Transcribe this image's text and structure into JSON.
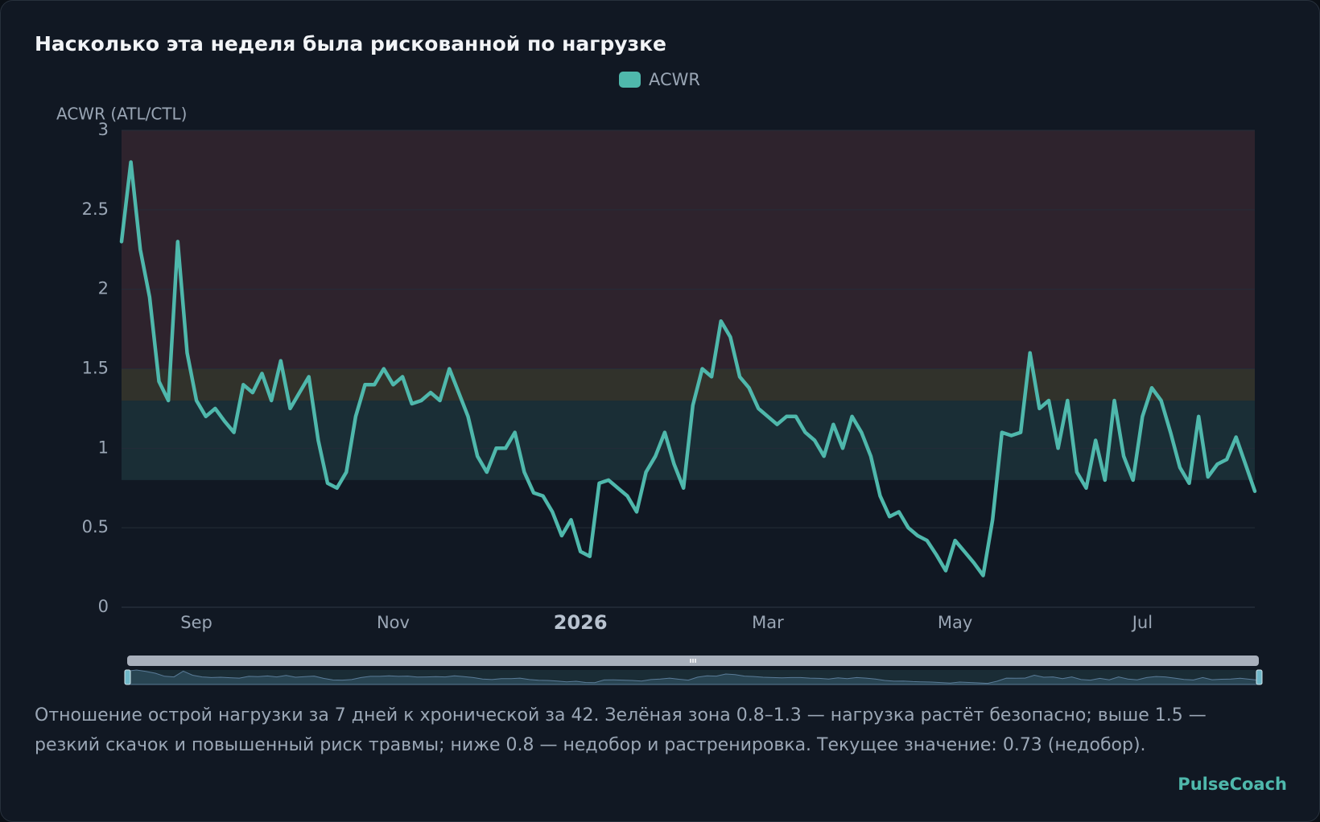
{
  "chart_data": {
    "type": "line",
    "title": "Насколько эта неделя была рискованной по нагрузке",
    "y_label": "ACWR (ATL/CTL)",
    "description": "Отношение острой нагрузки за 7 дней к хронической за 42. Зелёная зона 0.8–1.3 — нагрузка растёт безопасно; выше 1.5 — резкий скачок и повышенный риск травмы; ниже 0.8 — недобор и растренировка. Текущее значение: 0.73 (недобор).",
    "brand": "PulseCoach",
    "categories": [
      null,
      null,
      null,
      null,
      null,
      null,
      null,
      null,
      "Sep",
      null,
      null,
      null,
      null,
      null,
      null,
      null,
      null,
      null,
      null,
      null,
      null,
      null,
      null,
      null,
      null,
      null,
      null,
      null,
      null,
      "Nov",
      null,
      null,
      null,
      null,
      null,
      null,
      null,
      null,
      null,
      null,
      null,
      null,
      null,
      null,
      null,
      null,
      null,
      null,
      null,
      "2026",
      null,
      null,
      null,
      null,
      null,
      null,
      null,
      null,
      null,
      null,
      null,
      null,
      null,
      null,
      null,
      null,
      null,
      null,
      null,
      "Mar",
      null,
      null,
      null,
      null,
      null,
      null,
      null,
      null,
      null,
      null,
      null,
      null,
      null,
      null,
      null,
      null,
      null,
      null,
      null,
      "May",
      null,
      null,
      null,
      null,
      null,
      null,
      null,
      null,
      null,
      null,
      null,
      null,
      null,
      null,
      null,
      null,
      null,
      null,
      null,
      "Jul",
      null,
      null,
      null,
      null,
      null,
      null,
      null,
      null,
      null,
      null,
      null,
      null
    ],
    "series": [
      {
        "name": "ACWR",
        "color": "#4fb8ac",
        "values": [
          2.3,
          2.8,
          2.25,
          1.95,
          1.42,
          1.3,
          2.3,
          1.6,
          1.3,
          1.2,
          1.25,
          1.17,
          1.1,
          1.4,
          1.35,
          1.47,
          1.3,
          1.55,
          1.25,
          1.35,
          1.45,
          1.05,
          0.78,
          0.75,
          0.85,
          1.2,
          1.4,
          1.4,
          1.5,
          1.4,
          1.45,
          1.28,
          1.3,
          1.35,
          1.3,
          1.5,
          1.35,
          1.2,
          0.95,
          0.85,
          1.0,
          1.0,
          1.1,
          0.85,
          0.72,
          0.7,
          0.6,
          0.45,
          0.55,
          0.35,
          0.32,
          0.78,
          0.8,
          0.75,
          0.7,
          0.6,
          0.85,
          0.95,
          1.1,
          0.9,
          0.75,
          1.27,
          1.5,
          1.45,
          1.8,
          1.7,
          1.45,
          1.38,
          1.25,
          1.2,
          1.15,
          1.2,
          1.2,
          1.1,
          1.05,
          0.95,
          1.15,
          1.0,
          1.2,
          1.1,
          0.95,
          0.7,
          0.57,
          0.6,
          0.5,
          0.45,
          0.42,
          0.33,
          0.23,
          0.42,
          0.35,
          0.28,
          0.2,
          0.55,
          1.1,
          1.08,
          1.1,
          1.6,
          1.25,
          1.3,
          1.0,
          1.3,
          0.85,
          0.75,
          1.05,
          0.8,
          1.3,
          0.95,
          0.8,
          1.2,
          1.38,
          1.3,
          1.1,
          0.88,
          0.78,
          1.2,
          0.82,
          0.9,
          0.93,
          1.07,
          0.9,
          0.73
        ]
      }
    ],
    "zones": [
      {
        "from": 0.8,
        "to": 1.3,
        "color": "#1a2e36"
      },
      {
        "from": 1.3,
        "to": 1.5,
        "color": "#31322b"
      },
      {
        "from": 1.5,
        "to": 3,
        "color": "#2e232d"
      }
    ],
    "ylim": [
      0,
      3
    ],
    "yticks": [
      0,
      0.5,
      1,
      1.5,
      2,
      2.5,
      3
    ],
    "grid": true,
    "legend": "top"
  }
}
